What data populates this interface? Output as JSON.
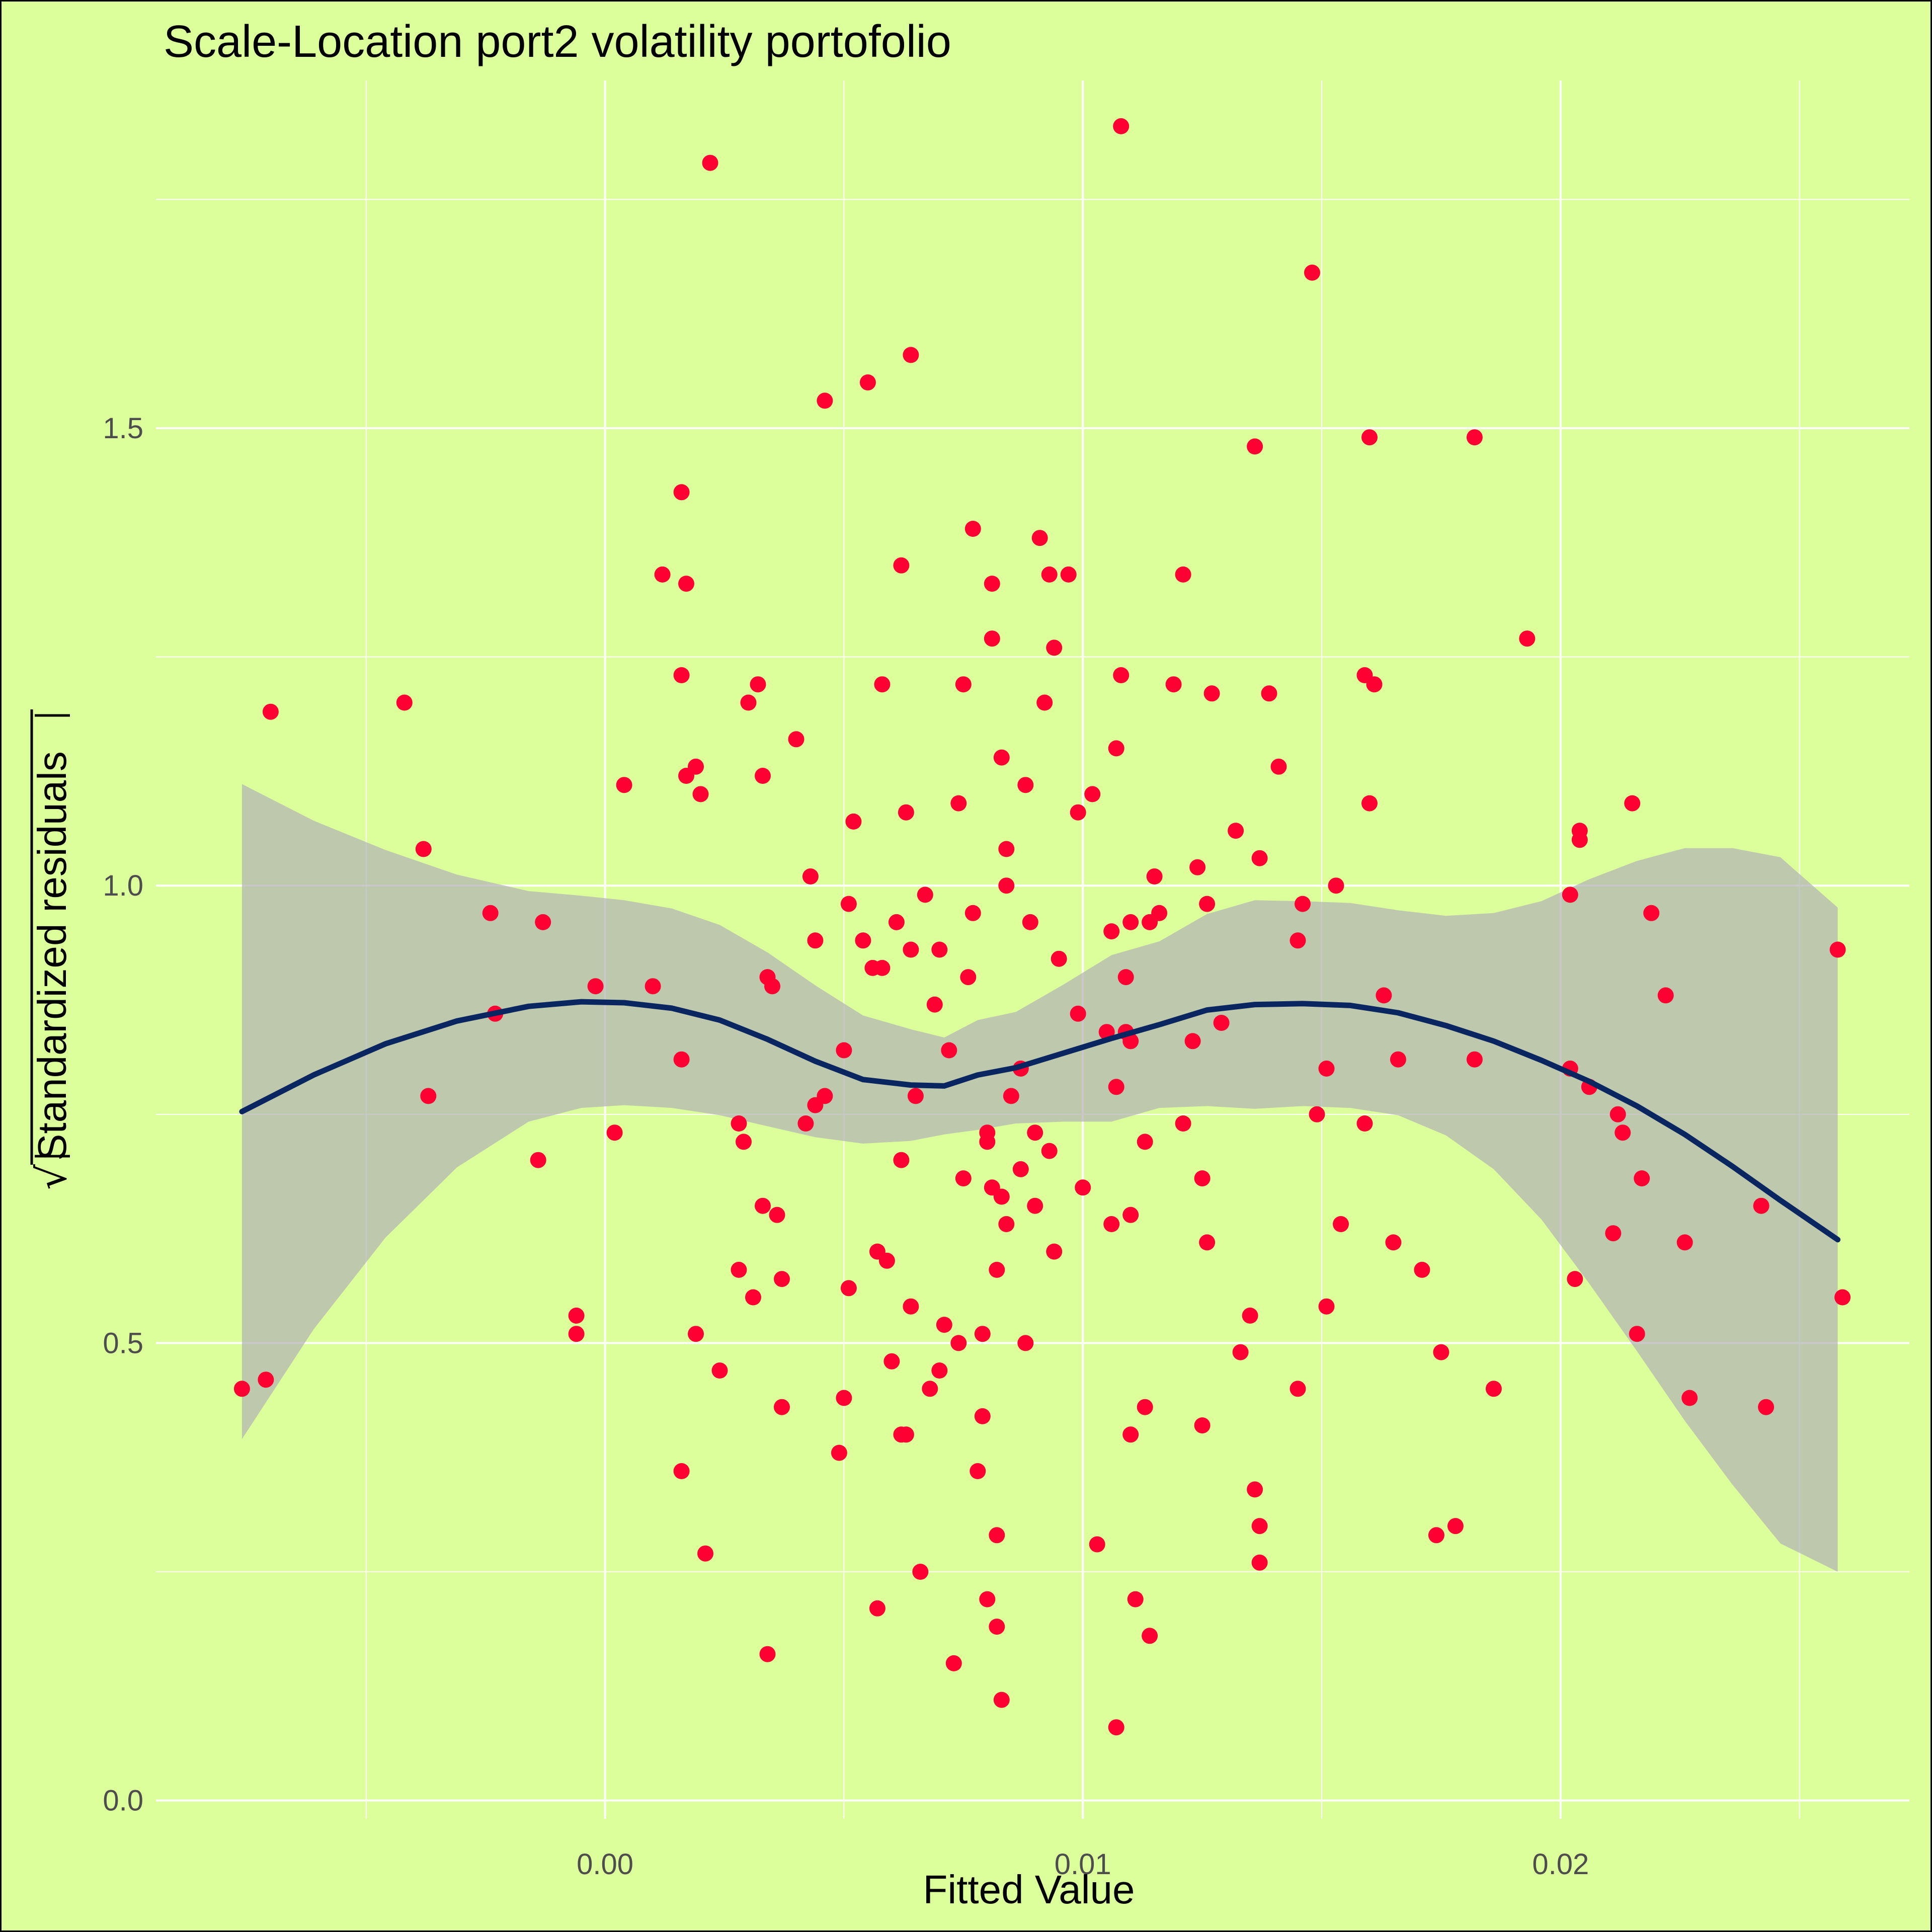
{
  "chart_data": {
    "type": "scatter",
    "title": "Scale-Location port2 volatility portofolio",
    "xlabel": "Fitted Value",
    "ylabel": "Standardized residuals",
    "ylabel_sqrt_symbol": "√",
    "xlim": [
      -0.0094,
      0.0273
    ],
    "ylim": [
      -0.02,
      1.88
    ],
    "x_ticks": [
      0.0,
      0.01,
      0.02
    ],
    "x_tick_labels": [
      "0.00",
      "0.01",
      "0.02"
    ],
    "y_ticks": [
      0.0,
      0.5,
      1.0,
      1.5
    ],
    "y_tick_labels": [
      "0.0",
      "0.5",
      "1.0",
      "1.5"
    ],
    "grid": true,
    "legend": "none",
    "colors": {
      "background": "#dcff9c",
      "points": "#ff0033",
      "smooth_line": "#0a2660",
      "confidence_band": "#b3b3b3",
      "grid": "#ffffff"
    },
    "points": [
      [
        -0.0076,
        0.45
      ],
      [
        -0.0071,
        0.46
      ],
      [
        -0.007,
        1.19
      ],
      [
        -0.0042,
        1.2
      ],
      [
        -0.0038,
        1.04
      ],
      [
        -0.0037,
        0.77
      ],
      [
        -0.0024,
        0.97
      ],
      [
        -0.0023,
        0.86
      ],
      [
        -0.0014,
        0.7
      ],
      [
        -0.0013,
        0.96
      ],
      [
        -0.0006,
        0.53
      ],
      [
        -0.0006,
        0.51
      ],
      [
        -0.0002,
        0.89
      ],
      [
        0.0002,
        0.73
      ],
      [
        0.0004,
        1.11
      ],
      [
        0.001,
        0.89
      ],
      [
        0.0012,
        1.34
      ],
      [
        0.0016,
        1.43
      ],
      [
        0.0016,
        1.23
      ],
      [
        0.0016,
        0.81
      ],
      [
        0.0016,
        0.36
      ],
      [
        0.0017,
        1.33
      ],
      [
        0.0017,
        1.12
      ],
      [
        0.0019,
        1.13
      ],
      [
        0.0019,
        0.51
      ],
      [
        0.002,
        1.1
      ],
      [
        0.0021,
        0.27
      ],
      [
        0.0022,
        1.79
      ],
      [
        0.0024,
        0.47
      ],
      [
        0.0028,
        0.74
      ],
      [
        0.0028,
        0.58
      ],
      [
        0.0029,
        0.72
      ],
      [
        0.003,
        1.2
      ],
      [
        0.0031,
        0.55
      ],
      [
        0.0032,
        1.22
      ],
      [
        0.0033,
        0.65
      ],
      [
        0.0033,
        1.12
      ],
      [
        0.0034,
        0.9
      ],
      [
        0.0034,
        0.16
      ],
      [
        0.0035,
        0.89
      ],
      [
        0.0036,
        0.64
      ],
      [
        0.0037,
        0.57
      ],
      [
        0.0037,
        0.43
      ],
      [
        0.004,
        1.16
      ],
      [
        0.0042,
        0.74
      ],
      [
        0.0043,
        1.01
      ],
      [
        0.0044,
        0.76
      ],
      [
        0.0044,
        0.94
      ],
      [
        0.0046,
        0.77
      ],
      [
        0.0046,
        1.53
      ],
      [
        0.0049,
        0.38
      ],
      [
        0.005,
        0.44
      ],
      [
        0.005,
        0.82
      ],
      [
        0.0051,
        0.98
      ],
      [
        0.0051,
        0.56
      ],
      [
        0.0052,
        1.07
      ],
      [
        0.0054,
        0.94
      ],
      [
        0.0055,
        1.55
      ],
      [
        0.0056,
        0.91
      ],
      [
        0.0057,
        0.6
      ],
      [
        0.0057,
        0.21
      ],
      [
        0.0058,
        0.91
      ],
      [
        0.0058,
        1.22
      ],
      [
        0.0059,
        0.59
      ],
      [
        0.006,
        0.48
      ],
      [
        0.0061,
        0.96
      ],
      [
        0.0062,
        0.7
      ],
      [
        0.0062,
        1.35
      ],
      [
        0.0062,
        0.4
      ],
      [
        0.0063,
        0.4
      ],
      [
        0.0063,
        1.08
      ],
      [
        0.0064,
        1.58
      ],
      [
        0.0064,
        0.54
      ],
      [
        0.0064,
        0.93
      ],
      [
        0.0065,
        0.77
      ],
      [
        0.0066,
        0.25
      ],
      [
        0.0067,
        0.99
      ],
      [
        0.0068,
        0.45
      ],
      [
        0.0069,
        0.87
      ],
      [
        0.007,
        0.93
      ],
      [
        0.007,
        0.47
      ],
      [
        0.0071,
        0.52
      ],
      [
        0.0072,
        0.82
      ],
      [
        0.0073,
        0.15
      ],
      [
        0.0074,
        1.09
      ],
      [
        0.0074,
        0.5
      ],
      [
        0.0075,
        0.68
      ],
      [
        0.0075,
        1.22
      ],
      [
        0.0076,
        0.9
      ],
      [
        0.0077,
        0.97
      ],
      [
        0.0077,
        1.39
      ],
      [
        0.0078,
        0.36
      ],
      [
        0.0079,
        0.51
      ],
      [
        0.0079,
        0.42
      ],
      [
        0.008,
        0.22
      ],
      [
        0.008,
        0.72
      ],
      [
        0.008,
        0.73
      ],
      [
        0.0081,
        1.33
      ],
      [
        0.0081,
        0.67
      ],
      [
        0.0081,
        1.27
      ],
      [
        0.0082,
        0.58
      ],
      [
        0.0082,
        0.29
      ],
      [
        0.0082,
        0.19
      ],
      [
        0.0083,
        1.14
      ],
      [
        0.0083,
        0.11
      ],
      [
        0.0083,
        0.66
      ],
      [
        0.0084,
        1.04
      ],
      [
        0.0084,
        1.0
      ],
      [
        0.0084,
        0.63
      ],
      [
        0.0085,
        0.77
      ],
      [
        0.0087,
        0.69
      ],
      [
        0.0087,
        0.8
      ],
      [
        0.0088,
        0.5
      ],
      [
        0.0088,
        1.11
      ],
      [
        0.0089,
        0.96
      ],
      [
        0.009,
        0.73
      ],
      [
        0.009,
        0.65
      ],
      [
        0.0091,
        1.38
      ],
      [
        0.0092,
        1.2
      ],
      [
        0.0093,
        0.71
      ],
      [
        0.0093,
        1.34
      ],
      [
        0.0094,
        0.6
      ],
      [
        0.0094,
        1.26
      ],
      [
        0.0095,
        0.92
      ],
      [
        0.0097,
        1.34
      ],
      [
        0.0099,
        0.86
      ],
      [
        0.0099,
        1.08
      ],
      [
        0.01,
        0.67
      ],
      [
        0.0102,
        1.1
      ],
      [
        0.0103,
        0.28
      ],
      [
        0.0105,
        0.84
      ],
      [
        0.0106,
        0.95
      ],
      [
        0.0106,
        0.63
      ],
      [
        0.0107,
        0.78
      ],
      [
        0.0107,
        1.15
      ],
      [
        0.0107,
        0.08
      ],
      [
        0.0108,
        1.23
      ],
      [
        0.0108,
        1.83
      ],
      [
        0.0109,
        0.9
      ],
      [
        0.0109,
        0.84
      ],
      [
        0.011,
        0.64
      ],
      [
        0.011,
        0.96
      ],
      [
        0.011,
        0.4
      ],
      [
        0.011,
        0.83
      ],
      [
        0.0111,
        0.22
      ],
      [
        0.0113,
        0.72
      ],
      [
        0.0113,
        0.43
      ],
      [
        0.0114,
        0.18
      ],
      [
        0.0114,
        0.96
      ],
      [
        0.0115,
        1.01
      ],
      [
        0.0116,
        0.97
      ],
      [
        0.0119,
        1.22
      ],
      [
        0.0121,
        1.34
      ],
      [
        0.0121,
        0.74
      ],
      [
        0.0123,
        0.83
      ],
      [
        0.0124,
        1.02
      ],
      [
        0.0125,
        0.68
      ],
      [
        0.0125,
        0.41
      ],
      [
        0.0126,
        0.98
      ],
      [
        0.0126,
        0.61
      ],
      [
        0.0127,
        1.21
      ],
      [
        0.0129,
        0.85
      ],
      [
        0.0132,
        1.06
      ],
      [
        0.0133,
        0.49
      ],
      [
        0.0135,
        0.53
      ],
      [
        0.0136,
        0.34
      ],
      [
        0.0136,
        1.48
      ],
      [
        0.0137,
        0.26
      ],
      [
        0.0137,
        0.3
      ],
      [
        0.0137,
        1.03
      ],
      [
        0.0139,
        1.21
      ],
      [
        0.0141,
        1.13
      ],
      [
        0.0145,
        0.45
      ],
      [
        0.0145,
        0.94
      ],
      [
        0.0146,
        0.98
      ],
      [
        0.0148,
        1.67
      ],
      [
        0.0149,
        0.75
      ],
      [
        0.0151,
        0.54
      ],
      [
        0.0151,
        0.8
      ],
      [
        0.0153,
        1.0
      ],
      [
        0.0154,
        0.63
      ],
      [
        0.0159,
        1.23
      ],
      [
        0.0159,
        0.74
      ],
      [
        0.016,
        1.09
      ],
      [
        0.016,
        1.49
      ],
      [
        0.0161,
        1.22
      ],
      [
        0.0163,
        0.88
      ],
      [
        0.0165,
        0.61
      ],
      [
        0.0166,
        0.81
      ],
      [
        0.0171,
        0.58
      ],
      [
        0.0174,
        0.29
      ],
      [
        0.0175,
        0.49
      ],
      [
        0.0178,
        0.3
      ],
      [
        0.0182,
        0.81
      ],
      [
        0.0182,
        1.49
      ],
      [
        0.0186,
        0.45
      ],
      [
        0.0193,
        1.27
      ],
      [
        0.0202,
        0.99
      ],
      [
        0.0202,
        0.8
      ],
      [
        0.0203,
        0.57
      ],
      [
        0.0204,
        1.06
      ],
      [
        0.0204,
        1.05
      ],
      [
        0.0206,
        0.78
      ],
      [
        0.0211,
        0.62
      ],
      [
        0.0212,
        0.75
      ],
      [
        0.0213,
        0.73
      ],
      [
        0.0215,
        1.09
      ],
      [
        0.0216,
        0.51
      ],
      [
        0.0217,
        0.68
      ],
      [
        0.0219,
        0.97
      ],
      [
        0.0222,
        0.88
      ],
      [
        0.0226,
        0.61
      ],
      [
        0.0227,
        0.44
      ],
      [
        0.0242,
        0.65
      ],
      [
        0.0243,
        0.43
      ],
      [
        0.0259,
        0.55
      ],
      [
        0.0258,
        0.93
      ]
    ],
    "smooth": {
      "x": [
        -0.0076,
        -0.0061,
        -0.0046,
        -0.0031,
        -0.0016,
        -0.0005,
        0.0004,
        0.0014,
        0.0024,
        0.0034,
        0.0044,
        0.0054,
        0.0064,
        0.0071,
        0.0078,
        0.0086,
        0.0096,
        0.0106,
        0.0116,
        0.0126,
        0.0136,
        0.0146,
        0.0156,
        0.0166,
        0.0176,
        0.0186,
        0.0196,
        0.0206,
        0.0216,
        0.0226,
        0.0236,
        0.0246,
        0.0258
      ],
      "y": [
        0.753,
        0.793,
        0.827,
        0.852,
        0.868,
        0.873,
        0.872,
        0.866,
        0.853,
        0.832,
        0.808,
        0.788,
        0.782,
        0.781,
        0.793,
        0.801,
        0.817,
        0.833,
        0.848,
        0.864,
        0.87,
        0.871,
        0.869,
        0.861,
        0.847,
        0.83,
        0.809,
        0.786,
        0.759,
        0.728,
        0.693,
        0.656,
        0.613
      ],
      "lower": [
        0.395,
        0.515,
        0.615,
        0.692,
        0.742,
        0.757,
        0.76,
        0.757,
        0.749,
        0.737,
        0.725,
        0.718,
        0.721,
        0.728,
        0.733,
        0.74,
        0.742,
        0.742,
        0.757,
        0.759,
        0.756,
        0.759,
        0.757,
        0.749,
        0.727,
        0.69,
        0.635,
        0.565,
        0.491,
        0.415,
        0.345,
        0.281,
        0.25
      ],
      "upper": [
        1.111,
        1.071,
        1.039,
        1.012,
        0.994,
        0.989,
        0.984,
        0.975,
        0.957,
        0.927,
        0.891,
        0.858,
        0.843,
        0.834,
        0.853,
        0.862,
        0.892,
        0.924,
        0.939,
        0.969,
        0.984,
        0.983,
        0.981,
        0.973,
        0.967,
        0.97,
        0.983,
        1.007,
        1.027,
        1.041,
        1.041,
        1.031,
        0.976
      ]
    }
  }
}
